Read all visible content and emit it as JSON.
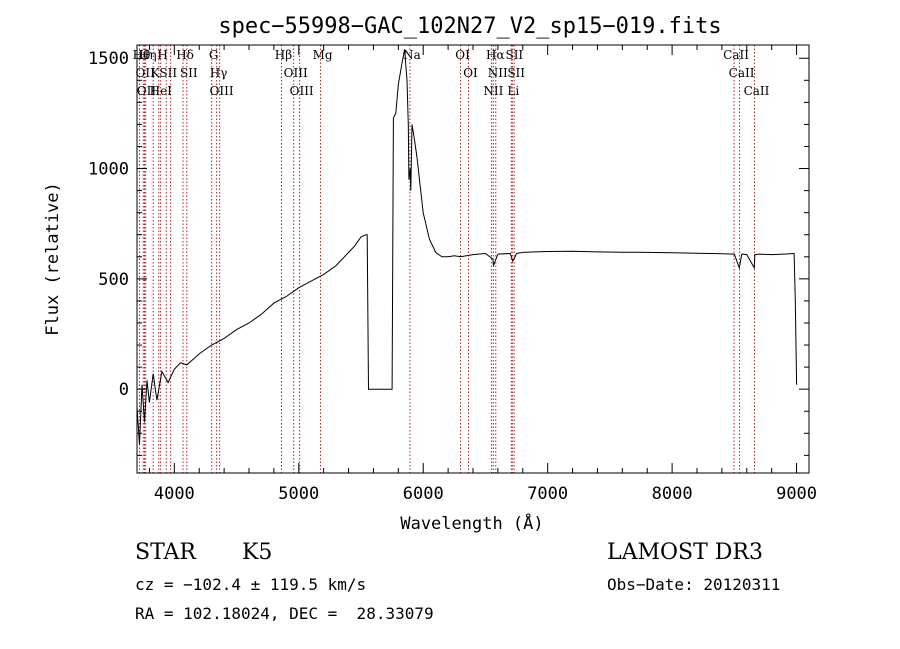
{
  "chart_data": {
    "type": "line",
    "title": "spec−55998−GAC_102N27_V2_sp15−019.fits",
    "xlabel": "Wavelength (Å)",
    "ylabel": "Flux (relative)",
    "xlim": [
      3700,
      9100
    ],
    "ylim": [
      -380,
      1560
    ],
    "x_ticks": [
      4000,
      5000,
      6000,
      7000,
      8000,
      9000
    ],
    "y_ticks": [
      0,
      500,
      1000,
      1500
    ],
    "x_ticks_labels": [
      "4000",
      "5000",
      "6000",
      "7000",
      "8000",
      "9000"
    ],
    "y_ticks_labels": [
      "0",
      "500",
      "1000",
      "1500"
    ],
    "series": [
      {
        "name": "flux",
        "x": [
          3700,
          3720,
          3740,
          3760,
          3780,
          3800,
          3830,
          3860,
          3900,
          3950,
          4000,
          4050,
          4100,
          4200,
          4300,
          4400,
          4500,
          4600,
          4700,
          4800,
          4900,
          5000,
          5100,
          5200,
          5300,
          5400,
          5450,
          5500,
          5540,
          5550,
          5560,
          5600,
          5700,
          5750,
          5760,
          5780,
          5800,
          5830,
          5850,
          5870,
          5880,
          5885,
          5895,
          5900,
          5910,
          5930,
          5950,
          5980,
          6000,
          6050,
          6100,
          6150,
          6200,
          6250,
          6300,
          6400,
          6500,
          6560,
          6565,
          6600,
          6700,
          6720,
          6750,
          6800,
          6900,
          7000,
          7200,
          7400,
          7600,
          7800,
          8000,
          8200,
          8400,
          8500,
          8540,
          8560,
          8600,
          8660,
          8665,
          8700,
          8800,
          8900,
          8980,
          8990,
          9000
        ],
        "y": [
          -80,
          -250,
          20,
          -150,
          40,
          -60,
          70,
          -50,
          80,
          30,
          90,
          120,
          110,
          160,
          200,
          230,
          270,
          300,
          340,
          390,
          420,
          460,
          490,
          520,
          560,
          620,
          650,
          690,
          700,
          700,
          0,
          0,
          0,
          0,
          1230,
          1250,
          1380,
          1480,
          1540,
          1400,
          1200,
          950,
          1000,
          900,
          1200,
          1130,
          1050,
          900,
          800,
          680,
          620,
          600,
          600,
          605,
          600,
          610,
          615,
          590,
          560,
          612,
          615,
          580,
          615,
          620,
          622,
          624,
          625,
          622,
          621,
          620,
          618,
          616,
          614,
          612,
          550,
          612,
          610,
          550,
          610,
          612,
          610,
          612,
          615,
          400,
          20
        ]
      }
    ],
    "line_groups": [
      {
        "x": [
          3720,
          3750,
          3760,
          3770,
          3830,
          3875,
          3890,
          3935,
          3970,
          4070,
          4100
        ],
        "labels": [
          "Hθ",
          "OII",
          "OII",
          "Hη",
          "K",
          "HeI",
          "H",
          "SII",
          "",
          "Hδ",
          "SII"
        ]
      },
      {
        "x": [
          4300,
          4340,
          4364
        ],
        "labels": [
          "G",
          "Hγ",
          "OIII"
        ]
      },
      {
        "x": [
          4861,
          4959,
          5007,
          5175
        ],
        "labels": [
          "Hβ",
          "OIII",
          "OIII",
          "Mg"
        ]
      },
      {
        "x": [
          5893
        ],
        "labels": [
          "Na"
        ]
      },
      {
        "x": [
          6300,
          6364,
          6548,
          6563,
          6583,
          6708,
          6716,
          6731
        ],
        "labels": [
          "OI",
          "OI",
          "NII",
          "Hα",
          "NII",
          "Li",
          "SII",
          "SII"
        ]
      },
      {
        "x": [
          8498,
          8542,
          8662
        ],
        "labels": [
          "CaII",
          "CaII",
          "CaII"
        ]
      }
    ]
  },
  "info": {
    "class_label": "STAR",
    "subclass": "K5",
    "survey": "LAMOST DR3",
    "cz_line": "cz = −102.4 ± 119.5 km/s",
    "obs_date": "Obs−Date: 20120311",
    "coords": "RA = 102.18024, DEC =  28.33079"
  }
}
